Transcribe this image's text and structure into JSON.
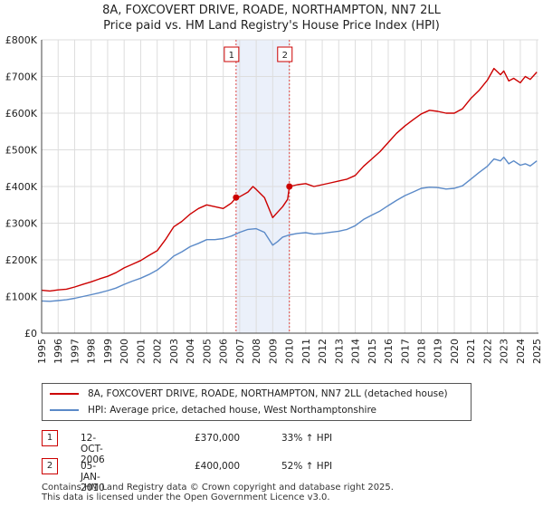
{
  "title_line1": "8A, FOXCOVERT DRIVE, ROADE, NORTHAMPTON, NN7 2LL",
  "title_line2": "Price paid vs. HM Land Registry's House Price Index (HPI)",
  "chart_data": {
    "type": "line",
    "title": "8A, FOXCOVERT DRIVE, ROADE, NORTHAMPTON, NN7 2LL",
    "subtitle": "Price paid vs. HM Land Registry's House Price Index (HPI)",
    "xlabel": "",
    "ylabel": "",
    "xlim": [
      1995,
      2025.1
    ],
    "ylim": [
      0,
      800000
    ],
    "y_ticks": [
      0,
      100000,
      200000,
      300000,
      400000,
      500000,
      600000,
      700000,
      800000
    ],
    "y_tick_labels": [
      "£0",
      "£100K",
      "£200K",
      "£300K",
      "£400K",
      "£500K",
      "£600K",
      "£700K",
      "£800K"
    ],
    "x_ticks": [
      1995,
      1996,
      1997,
      1998,
      1999,
      2000,
      2001,
      2002,
      2003,
      2004,
      2005,
      2006,
      2007,
      2008,
      2009,
      2010,
      2011,
      2012,
      2013,
      2014,
      2015,
      2016,
      2017,
      2018,
      2019,
      2020,
      2021,
      2022,
      2023,
      2024,
      2025
    ],
    "grid": true,
    "shaded_region": {
      "from": 2006.78,
      "to": 2010.01,
      "color": "#dde6f7"
    },
    "markers": [
      {
        "label": "1",
        "x": 2006.78
      },
      {
        "label": "2",
        "x": 2010.01
      }
    ],
    "sale_points": [
      {
        "x": 2006.78,
        "y": 370000
      },
      {
        "x": 2010.01,
        "y": 400000
      }
    ],
    "series": [
      {
        "name": "8A, FOXCOVERT DRIVE, ROADE, NORTHAMPTON, NN7 2LL (detached house)",
        "color": "#cc0000",
        "x": [
          1995,
          1995.5,
          1996,
          1996.5,
          1997,
          1997.5,
          1998,
          1998.5,
          1999,
          1999.5,
          2000,
          2000.5,
          2001,
          2001.5,
          2002,
          2002.5,
          2003,
          2003.5,
          2004,
          2004.5,
          2005,
          2005.5,
          2006,
          2006.5,
          2006.78,
          2007,
          2007.5,
          2007.8,
          2008,
          2008.5,
          2009,
          2009.3,
          2009.6,
          2009.9,
          2010.01,
          2010.5,
          2011,
          2011.5,
          2012,
          2012.5,
          2013,
          2013.5,
          2014,
          2014.5,
          2015,
          2015.5,
          2016,
          2016.5,
          2017,
          2017.5,
          2018,
          2018.5,
          2019,
          2019.5,
          2020,
          2020.5,
          2021,
          2021.5,
          2022,
          2022.4,
          2022.8,
          2023,
          2023.3,
          2023.6,
          2024,
          2024.3,
          2024.6,
          2025
        ],
        "values": [
          117000,
          115000,
          118000,
          120000,
          126000,
          133000,
          140000,
          148000,
          155000,
          165000,
          178000,
          188000,
          198000,
          212000,
          225000,
          255000,
          290000,
          305000,
          325000,
          340000,
          350000,
          345000,
          340000,
          355000,
          370000,
          372000,
          385000,
          400000,
          392000,
          370000,
          315000,
          330000,
          345000,
          365000,
          400000,
          405000,
          408000,
          400000,
          405000,
          410000,
          415000,
          420000,
          430000,
          455000,
          475000,
          495000,
          520000,
          545000,
          565000,
          582000,
          598000,
          608000,
          605000,
          600000,
          600000,
          612000,
          640000,
          662000,
          690000,
          722000,
          705000,
          715000,
          688000,
          695000,
          683000,
          700000,
          692000,
          712000
        ]
      },
      {
        "name": "HPI: Average price, detached house, West Northamptonshire",
        "color": "#5b8ac8",
        "x": [
          1995,
          1995.5,
          1996,
          1996.5,
          1997,
          1997.5,
          1998,
          1998.5,
          1999,
          1999.5,
          2000,
          2000.5,
          2001,
          2001.5,
          2002,
          2002.5,
          2003,
          2003.5,
          2004,
          2004.5,
          2005,
          2005.5,
          2006,
          2006.5,
          2007,
          2007.5,
          2008,
          2008.5,
          2009,
          2009.3,
          2009.6,
          2010,
          2010.5,
          2011,
          2011.5,
          2012,
          2012.5,
          2013,
          2013.5,
          2014,
          2014.5,
          2015,
          2015.5,
          2016,
          2016.5,
          2017,
          2017.5,
          2018,
          2018.5,
          2019,
          2019.5,
          2020,
          2020.5,
          2021,
          2021.5,
          2022,
          2022.4,
          2022.8,
          2023,
          2023.3,
          2023.6,
          2024,
          2024.3,
          2024.6,
          2025
        ],
        "values": [
          88000,
          87000,
          89000,
          91000,
          95000,
          100000,
          105000,
          110000,
          116000,
          123000,
          133000,
          142000,
          150000,
          160000,
          172000,
          190000,
          210000,
          222000,
          236000,
          245000,
          255000,
          255000,
          258000,
          265000,
          275000,
          283000,
          285000,
          275000,
          240000,
          250000,
          262000,
          268000,
          272000,
          274000,
          270000,
          272000,
          275000,
          278000,
          283000,
          293000,
          310000,
          322000,
          333000,
          348000,
          362000,
          375000,
          385000,
          395000,
          398000,
          397000,
          393000,
          395000,
          402000,
          420000,
          438000,
          455000,
          475000,
          470000,
          480000,
          462000,
          470000,
          458000,
          462000,
          456000,
          470000
        ]
      }
    ]
  },
  "legend": {
    "property_label": "8A, FOXCOVERT DRIVE, ROADE, NORTHAMPTON, NN7 2LL (detached house)",
    "hpi_label": "HPI: Average price, detached house, West Northamptonshire",
    "property_color": "#cc0000",
    "hpi_color": "#5b8ac8"
  },
  "transactions": [
    {
      "num": "1",
      "date": "12-OCT-2006",
      "price": "£370,000",
      "hpi": "33% ↑ HPI"
    },
    {
      "num": "2",
      "date": "05-JAN-2010",
      "price": "£400,000",
      "hpi": "52% ↑ HPI"
    }
  ],
  "footer": {
    "line1": "Contains HM Land Registry data © Crown copyright and database right 2025.",
    "line2": "This data is licensed under the Open Government Licence v3.0."
  }
}
